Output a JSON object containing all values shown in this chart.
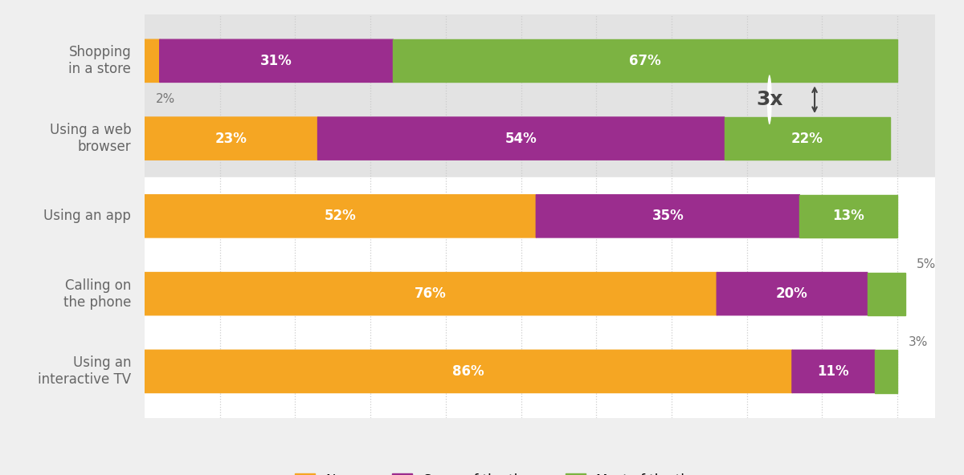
{
  "categories": [
    "Shopping\nin a store",
    "Using a web\nbrowser",
    "Using an app",
    "Calling on\nthe phone",
    "Using an\ninteractive TV"
  ],
  "never": [
    2,
    23,
    52,
    76,
    86
  ],
  "some_of_time": [
    31,
    54,
    35,
    20,
    11
  ],
  "most_of_time": [
    67,
    22,
    13,
    5,
    3
  ],
  "color_never": "#F5A623",
  "color_some": "#9B2D8E",
  "color_most": "#7CB342",
  "bg_color": "#EFEFEF",
  "bg_highlight": "#E3E3E3",
  "bg_white": "#FFFFFF",
  "bar_height": 0.55,
  "label_fontsize": 12,
  "category_fontsize": 12,
  "legend_fontsize": 12,
  "total_width": 100,
  "xlim_max": 105
}
